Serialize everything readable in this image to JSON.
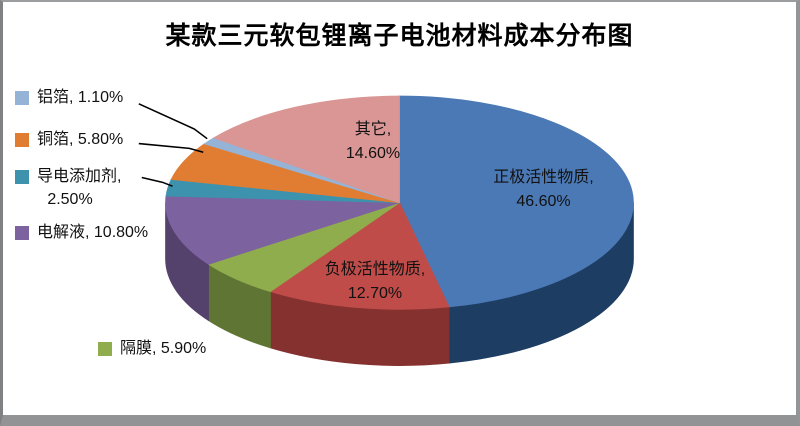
{
  "frame": {
    "background": "#FFFFFF",
    "border_color": "#919395"
  },
  "chart_data": {
    "type": "pie",
    "style": "3d",
    "title": "某款三元软包锂离子电池材料成本分布图",
    "unit": "%",
    "start_angle_deg": 0,
    "direction": "clockwise",
    "legend_position": "data-labels-with-keys",
    "label_format": "名称, 0.00%",
    "slices": [
      {
        "label": "正极活性物质",
        "value": 46.6,
        "color": "#4B79B5",
        "side_color": "#1E3D62",
        "label_placement": "inside"
      },
      {
        "label": "负极活性物质",
        "value": 12.7,
        "color": "#BF4C49",
        "side_color": "#84312F",
        "label_placement": "inside"
      },
      {
        "label": "隔膜",
        "value": 5.9,
        "color": "#8FAD4D",
        "side_color": "#5F7533",
        "label_placement": "outside"
      },
      {
        "label": "电解液",
        "value": 10.8,
        "color": "#7D62A0",
        "side_color": "#54426C",
        "label_placement": "outside"
      },
      {
        "label": "导电添加剂",
        "value": 2.5,
        "color": "#3D93AD",
        "side_color": "#276070",
        "label_placement": "outside-with-leader"
      },
      {
        "label": "铜箔",
        "value": 5.8,
        "color": "#E07D33",
        "side_color": "#9B5520",
        "label_placement": "outside-with-leader"
      },
      {
        "label": "铝箔",
        "value": 1.1,
        "color": "#95B3D7",
        "side_color": "#62788F",
        "label_placement": "outside-with-leader"
      },
      {
        "label": "其它",
        "value": 14.6,
        "color": "#D99694",
        "side_color": "#8F605F",
        "label_placement": "inside"
      }
    ]
  }
}
